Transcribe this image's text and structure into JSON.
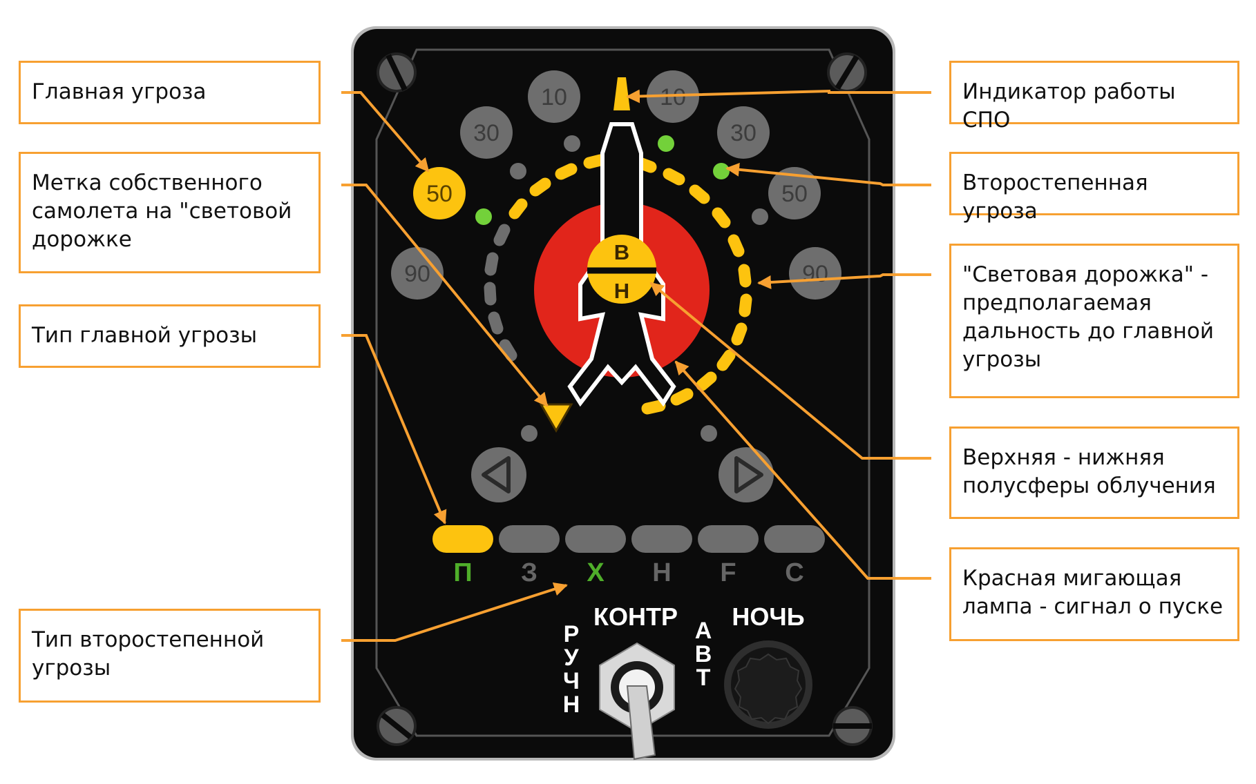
{
  "callouts": {
    "main_threat": "Главная угроза",
    "own_aircraft_mark": "Метка собственного\nсамолета на \"световой\nдорожке",
    "main_threat_type": "Тип главной угрозы",
    "secondary_threat_type": "Тип второстепенной\nугрозы",
    "spo_indicator": "Индикатор работы СПО",
    "secondary_threat": "Второстепенная угроза",
    "light_track": "\"Световая дорожка\" -\nпредполагаемая\nдальность до главной\nугрозы",
    "hemispheres": "Верхняя - нижняя\nполусферы облучения",
    "launch_lamp": "Красная мигающая\nлампа - сигнал о пуске"
  },
  "panel": {
    "angle_labels_left": [
      "10",
      "30",
      "50",
      "90"
    ],
    "angle_labels_right": [
      "10",
      "30",
      "50",
      "90"
    ],
    "hemisphere_upper": "В",
    "hemisphere_lower": "Н",
    "threat_types": [
      "П",
      "З",
      "Х",
      "Н",
      "F",
      "С"
    ],
    "switch_label_top": "КОНТР",
    "switch_label_left": "РУЧН",
    "switch_label_right": "АВТ",
    "night_label": "НОЧЬ"
  },
  "colors": {
    "callout_border": "#f7a031",
    "arrow": "#f7a031",
    "panel_bg": "#0b0b0b",
    "lamp_yellow": "#fdc30f",
    "lamp_off": "#6e6e6e",
    "lamp_green": "#73d13a",
    "launch_red": "#e1251b",
    "type_active_green": "#4fae2a",
    "type_inactive": "#666666"
  }
}
